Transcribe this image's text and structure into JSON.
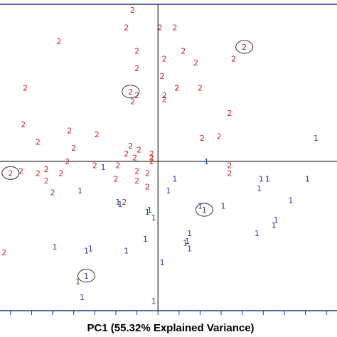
{
  "chart_data": {
    "type": "scatter",
    "xlabel": "PC1 (55.32% Explained Variance)",
    "ylabel": "",
    "xlim": [
      -7.5,
      8.5
    ],
    "ylim": [
      -7.7,
      8.1
    ],
    "grid": false,
    "colors": {
      "1": "#2e3d9a",
      "2": "#cc2222",
      "axis": "#000000",
      "frame": "#2b3a8c"
    },
    "series": [
      {
        "name": "2",
        "x": [
          -1.2,
          -1.5,
          0.1,
          0.8,
          -4.7,
          -1.0,
          0.3,
          1.2,
          1.8,
          3.6,
          -1.0,
          0.2,
          2.0,
          -6.3,
          -1.0,
          0.3,
          0.9,
          0.9,
          -1.2,
          0.3,
          3.4,
          -6.4,
          -4.2,
          -2.9,
          2.1,
          2.9,
          -5.7,
          -1.3,
          -4.0,
          -1.5,
          -0.9,
          -0.3,
          -1.1,
          -0.3,
          -0.3,
          -4.3,
          -5.3,
          -3.0,
          -1.9,
          3.4,
          -6.5,
          -5.7,
          -4.6,
          -1.0,
          -0.5,
          3.4,
          -5.3,
          -2.0,
          -1.0,
          -0.5,
          -5.0,
          -1.6,
          -7.3
        ],
        "y": [
          7.8,
          6.9,
          6.9,
          6.9,
          6.2,
          5.7,
          5.3,
          5.7,
          5.1,
          5.3,
          4.8,
          4.4,
          3.8,
          3.8,
          3.4,
          3.4,
          3.8,
          3.8,
          3.1,
          3.2,
          2.5,
          1.9,
          1.6,
          1.4,
          1.2,
          1.3,
          1.0,
          0.8,
          0.7,
          0.4,
          0.6,
          0.4,
          0.2,
          0.2,
          0.0,
          0.0,
          -0.4,
          -0.2,
          -0.2,
          -0.2,
          -0.5,
          -0.6,
          -0.6,
          -0.5,
          -0.6,
          -0.6,
          -1.0,
          -0.9,
          -1.0,
          -1.3,
          -1.6,
          -2.1,
          -4.7
        ],
        "labels": [
          "2",
          "2",
          "2",
          "2",
          "2",
          "2",
          "2",
          "2",
          "2",
          "2",
          "2",
          "2",
          "2",
          "2",
          "2",
          "2",
          "2",
          "2",
          "2",
          "2",
          "2",
          "2",
          "2",
          "2",
          "2",
          "2",
          "2",
          "2",
          "2",
          "2",
          "2",
          "2",
          "2",
          "2",
          "2",
          "2",
          "2",
          "2",
          "2",
          "2",
          "2",
          "2",
          "2",
          "2",
          "2",
          "2",
          "2",
          "2",
          "2",
          "2",
          "2",
          "2",
          "2"
        ]
      },
      {
        "name": "1",
        "x": [
          7.5,
          2.3,
          -2.6,
          0.8,
          4.9,
          5.2,
          7.1,
          8.6,
          4.8,
          0.5,
          -3.7,
          6.3,
          -1.9,
          -1.8,
          -0.4,
          2.0,
          3.1,
          -0.5,
          -0.2,
          5.6,
          5.5,
          1.5,
          4.7,
          -0.6,
          1.4,
          1.3,
          1.5,
          -4.9,
          -3.2,
          -3.4,
          -1.5,
          0.2,
          -3.8,
          -0.2,
          -3.6
        ],
        "y": [
          1.2,
          0.0,
          -0.3,
          -0.9,
          -0.9,
          -0.9,
          -0.9,
          -0.6,
          -1.4,
          -1.5,
          -1.5,
          -2.0,
          -2.1,
          -2.2,
          -2.5,
          -2.3,
          -2.3,
          -2.6,
          -2.9,
          -3.0,
          -3.3,
          -3.7,
          -3.7,
          -4.0,
          -4.1,
          -4.2,
          -4.5,
          -4.4,
          -4.5,
          -4.6,
          -4.6,
          -5.2,
          -6.2,
          -7.2,
          -7.0
        ],
        "labels": [
          "1",
          "1",
          "1",
          "1",
          "1",
          "1",
          "1",
          "1",
          "1",
          "1",
          "1",
          "1",
          "1",
          "1",
          "1",
          "1",
          "1",
          "1",
          "1",
          "1",
          "1",
          "1",
          "1",
          "1",
          "1",
          "1",
          "1",
          "1",
          "1",
          "1",
          "1",
          "1",
          "1",
          "1",
          "1"
        ]
      }
    ],
    "circled_points": [
      {
        "series": "2",
        "x": 4.1,
        "y": 5.9,
        "label": "2"
      },
      {
        "series": "2",
        "x": -1.3,
        "y": 3.6,
        "label": "2"
      },
      {
        "series": "2",
        "x": -7.0,
        "y": -0.6,
        "label": "2"
      },
      {
        "series": "1",
        "x": 2.2,
        "y": -2.5,
        "label": "1"
      },
      {
        "series": "1",
        "x": -3.4,
        "y": -5.9,
        "label": "1"
      }
    ]
  }
}
